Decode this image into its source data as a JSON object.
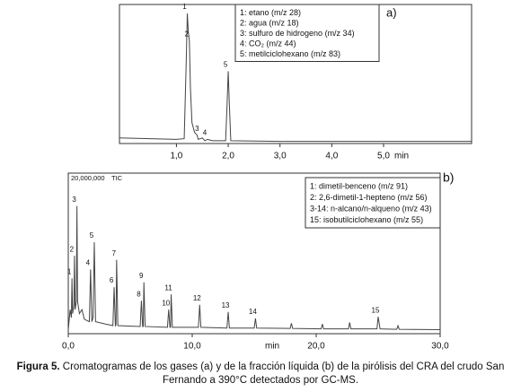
{
  "chart_data": [
    {
      "type": "line",
      "panel_label": "a)",
      "color": "#444444",
      "x": [
        -0.1,
        0.5,
        1.0,
        1.15,
        1.19,
        1.21,
        1.23,
        1.25,
        1.27,
        1.3,
        1.35,
        1.4,
        1.42,
        1.5,
        1.55,
        1.6,
        1.7,
        1.95,
        1.98,
        2.0,
        2.02,
        2.05,
        3.0,
        4.0,
        5.0,
        6.7
      ],
      "values": [
        4,
        3.5,
        3,
        3.5,
        60,
        93.5,
        80,
        74,
        40,
        15,
        8,
        6,
        3,
        4,
        2,
        3,
        2,
        2,
        30,
        52,
        30,
        2,
        1.5,
        1.5,
        1.5,
        1.5
      ],
      "xlim": [
        -0.1,
        6.7
      ],
      "ylim": [
        0,
        100
      ],
      "xticks": [
        {
          "value": 1,
          "label": "1,0"
        },
        {
          "value": 2,
          "label": "2,0"
        },
        {
          "value": 3,
          "label": "3,0"
        },
        {
          "value": 4,
          "label": "4,0"
        },
        {
          "value": 5,
          "label": "5,0"
        }
      ],
      "x_label": "min",
      "annotations": [
        {
          "text": "1",
          "x": 1.21,
          "y": 93.5
        },
        {
          "text": "2",
          "x": 1.25,
          "y": 74
        },
        {
          "text": "3",
          "x": 1.45,
          "y": 6
        },
        {
          "text": "4",
          "x": 1.6,
          "y": 3
        },
        {
          "text": "5",
          "x": 2.0,
          "y": 52
        }
      ],
      "legend_items": [
        "1: etano (m/z 28)",
        "2: agua (m/z 18)",
        "3: sulfuro de hidrogeno (m/z 34)",
        "4: CO₂ (m/z 44)",
        "5: metilciclohexano (m/z 83)"
      ]
    },
    {
      "type": "line",
      "panel_label": "b)",
      "color": "#444444",
      "trace_label": "TIC",
      "x": [
        0,
        0.15,
        0.25,
        0.3,
        0.35,
        0.45,
        0.5,
        0.55,
        0.65,
        0.7,
        0.75,
        0.9,
        1.1,
        1.3,
        1.7,
        1.8,
        1.9,
        2.0,
        2.1,
        2.2,
        3.0,
        3.6,
        3.7,
        3.8,
        3.85,
        3.9,
        4.0,
        5.8,
        5.9,
        6.0,
        6.05,
        6.1,
        6.2,
        8.0,
        8.1,
        8.2,
        8.25,
        8.3,
        8.4,
        10.5,
        10.6,
        10.7,
        12.8,
        12.9,
        13.0,
        15.0,
        15.1,
        15.2,
        17.9,
        18.0,
        18.1,
        20.4,
        20.5,
        20.6,
        22.6,
        22.7,
        22.8,
        24.9,
        25.0,
        25.15,
        26.5,
        26.6,
        26.7,
        30
      ],
      "values": [
        500000,
        3000000,
        2000000,
        6900000,
        2500000,
        3500000,
        9700000,
        3000000,
        4000000,
        15900000,
        4000000,
        2500000,
        3000000,
        1800000,
        1500000,
        8000000,
        1500000,
        2000000,
        11400000,
        1500000,
        1200000,
        1000000,
        5800000,
        1000000,
        1100000,
        9200000,
        1000000,
        900000,
        4100000,
        900000,
        900000,
        6400000,
        900000,
        800000,
        3000000,
        800000,
        800000,
        4900000,
        800000,
        800000,
        3600000,
        800000,
        700000,
        2700000,
        700000,
        700000,
        1900000,
        700000,
        650000,
        1300000,
        650000,
        600000,
        1200000,
        600000,
        600000,
        1400000,
        600000,
        600000,
        2100000,
        600000,
        550000,
        1000000,
        550000,
        500000
      ],
      "xlim": [
        0,
        30
      ],
      "ylim": [
        0,
        20000000
      ],
      "xticks": [
        {
          "value": 0,
          "label": "0,0"
        },
        {
          "value": 10,
          "label": "10,0"
        },
        {
          "value": 20,
          "label": "20,0"
        },
        {
          "value": 30,
          "label": "30,0"
        }
      ],
      "yticks": [
        {
          "value": 20000000,
          "label": "20,000,000"
        }
      ],
      "x_label": "min",
      "annotations": [
        {
          "text": "1",
          "x": 0.3,
          "y": 6900000
        },
        {
          "text": "2",
          "x": 0.5,
          "y": 9700000
        },
        {
          "text": "3",
          "x": 0.7,
          "y": 15900000
        },
        {
          "text": "4",
          "x": 1.8,
          "y": 8000000
        },
        {
          "text": "5",
          "x": 2.1,
          "y": 11400000
        },
        {
          "text": "6",
          "x": 3.7,
          "y": 5800000
        },
        {
          "text": "7",
          "x": 3.9,
          "y": 9200000
        },
        {
          "text": "8",
          "x": 5.9,
          "y": 4100000
        },
        {
          "text": "9",
          "x": 6.1,
          "y": 6400000
        },
        {
          "text": "10",
          "x": 8.1,
          "y": 3000000
        },
        {
          "text": "11",
          "x": 8.3,
          "y": 4900000
        },
        {
          "text": "12",
          "x": 10.6,
          "y": 3600000
        },
        {
          "text": "13",
          "x": 12.9,
          "y": 2700000
        },
        {
          "text": "14",
          "x": 15.1,
          "y": 1900000
        },
        {
          "text": "15",
          "x": 25.0,
          "y": 2100000
        }
      ],
      "legend_items": [
        "1: dimetil-benceno (m/z 91)",
        "2: 2,6-dimetil-1-hepteno (m/z 56)",
        "3-14: n-alcano/n-alqueno (m/z 43)",
        "15: isobutilciclohexano (m/z 55)"
      ]
    }
  ],
  "caption": {
    "label": "Figura 5.",
    "text": "Cromatogramas de los gases (a) y  de la fracción líquida (b) de la pirólisis del CRA  del crudo San Fernando a 390°C detectados por GC-MS."
  }
}
